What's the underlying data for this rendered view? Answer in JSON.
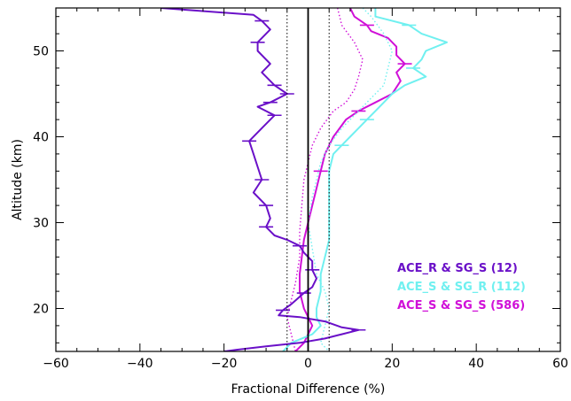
{
  "chart_data": {
    "type": "line",
    "xlabel": "Fractional Difference (%)",
    "ylabel": "Altitude (km)",
    "xlim": [
      -60,
      60
    ],
    "ylim": [
      15,
      55
    ],
    "xticks": [
      -60,
      -40,
      -20,
      0,
      20,
      40,
      60
    ],
    "yticks": [
      20,
      30,
      40,
      50
    ],
    "xtick_labels": [
      "−60",
      "−40",
      "−20",
      "0",
      "20",
      "40",
      "60"
    ],
    "ytick_labels": [
      "20",
      "30",
      "40",
      "50"
    ],
    "reference_lines": {
      "solid_x": 0,
      "dotted_x": [
        -5,
        5
      ]
    },
    "legend_position": "lower-right",
    "series": [
      {
        "label": "ACE_R & SG_S (12)",
        "color": "#6a10c8",
        "mean": [
          [
            -35,
            55
          ],
          [
            -13,
            54.2
          ],
          [
            -11,
            53.5
          ],
          [
            -9,
            52.5
          ],
          [
            -12,
            51
          ],
          [
            -12,
            50
          ],
          [
            -9,
            48.5
          ],
          [
            -11,
            47.5
          ],
          [
            -8,
            46
          ],
          [
            -5,
            45
          ],
          [
            -9,
            44
          ],
          [
            -12,
            43.5
          ],
          [
            -8,
            42.5
          ],
          [
            -11,
            41
          ],
          [
            -14,
            39.5
          ],
          [
            -13,
            38
          ],
          [
            -12,
            36.5
          ],
          [
            -11,
            35
          ],
          [
            -13,
            33.5
          ],
          [
            -10,
            32
          ],
          [
            -9,
            30.5
          ],
          [
            -10,
            29.5
          ],
          [
            -8,
            28.5
          ],
          [
            -5,
            28
          ],
          [
            -2,
            27.3
          ],
          [
            -1,
            26.5
          ],
          [
            1,
            25.5
          ],
          [
            1,
            24.5
          ],
          [
            2,
            23.5
          ],
          [
            1,
            22.5
          ],
          [
            -1,
            21.8
          ],
          [
            -4,
            20.5
          ],
          [
            -6,
            19.8
          ],
          [
            -7,
            19.2
          ],
          [
            -2,
            19.0
          ],
          [
            4,
            18.5
          ],
          [
            8,
            17.8
          ],
          [
            12,
            17.5
          ],
          [
            8,
            17.0
          ],
          [
            4,
            16.5
          ],
          [
            -2,
            16.0
          ],
          [
            -10,
            15.6
          ],
          [
            -17,
            15.2
          ],
          [
            -20,
            15
          ]
        ],
        "error_bars": [
          [
            -11,
            53.5
          ],
          [
            -12,
            51
          ],
          [
            -8,
            46
          ],
          [
            -5,
            45
          ],
          [
            -9,
            44
          ],
          [
            -8,
            42.5
          ],
          [
            -14,
            39.5
          ],
          [
            -11,
            35
          ],
          [
            -10,
            32
          ],
          [
            -10,
            29.5
          ],
          [
            -2,
            27.3
          ],
          [
            1,
            24.5
          ],
          [
            -1,
            21.8
          ],
          [
            -6,
            19.8
          ],
          [
            12,
            17.5
          ]
        ],
        "dotted": []
      },
      {
        "label": "ACE_S & SG_R (112)",
        "color": "#70f0f0",
        "mean": [
          [
            16,
            55
          ],
          [
            16,
            54
          ],
          [
            24,
            53
          ],
          [
            27,
            52
          ],
          [
            33,
            51
          ],
          [
            28,
            50
          ],
          [
            27,
            49
          ],
          [
            25,
            48
          ],
          [
            28,
            47
          ],
          [
            23,
            46
          ],
          [
            20,
            45
          ],
          [
            18,
            44
          ],
          [
            16,
            43
          ],
          [
            14,
            42
          ],
          [
            12,
            41
          ],
          [
            10,
            40
          ],
          [
            8,
            39
          ],
          [
            6,
            38
          ],
          [
            5,
            36
          ],
          [
            5,
            34
          ],
          [
            5,
            32
          ],
          [
            5,
            30
          ],
          [
            5,
            28
          ],
          [
            4,
            26
          ],
          [
            3,
            24
          ],
          [
            3,
            22
          ],
          [
            2,
            20
          ],
          [
            2,
            19
          ],
          [
            3,
            18
          ],
          [
            1,
            17
          ],
          [
            -4,
            16
          ],
          [
            -6,
            15
          ]
        ],
        "error_bars": [
          [
            24,
            53
          ],
          [
            25,
            48
          ],
          [
            14,
            42
          ],
          [
            8,
            39
          ]
        ],
        "dotted": [
          [
            13,
            55
          ],
          [
            15,
            54
          ],
          [
            18,
            52
          ],
          [
            20,
            50
          ],
          [
            19,
            48
          ],
          [
            18,
            46
          ],
          [
            15,
            44.5
          ],
          [
            12,
            43
          ],
          [
            8,
            41
          ],
          [
            5,
            39
          ],
          [
            3,
            37
          ],
          [
            2,
            35
          ],
          [
            1,
            33
          ],
          [
            0,
            30
          ],
          [
            1,
            27
          ],
          [
            2,
            24
          ],
          [
            4,
            22
          ],
          [
            5,
            20
          ],
          [
            4,
            18
          ],
          [
            3,
            16
          ],
          [
            5,
            15
          ]
        ]
      },
      {
        "label": "ACE_S & SG_S (586)",
        "color": "#d010d8",
        "mean": [
          [
            10,
            55
          ],
          [
            11,
            54
          ],
          [
            14,
            53
          ],
          [
            15,
            52.3
          ],
          [
            19,
            51.5
          ],
          [
            21,
            50.5
          ],
          [
            21,
            49.5
          ],
          [
            23,
            48.5
          ],
          [
            21,
            47.5
          ],
          [
            22,
            46.5
          ],
          [
            20,
            45
          ],
          [
            16,
            44
          ],
          [
            12,
            43
          ],
          [
            9,
            42
          ],
          [
            6,
            40
          ],
          [
            4,
            38
          ],
          [
            3,
            36
          ],
          [
            2,
            34
          ],
          [
            1,
            32
          ],
          [
            0,
            30
          ],
          [
            -1,
            28
          ],
          [
            -1.5,
            26
          ],
          [
            -2,
            24
          ],
          [
            -2,
            22
          ],
          [
            -1,
            20
          ],
          [
            0,
            19
          ],
          [
            1,
            18
          ],
          [
            0,
            17
          ],
          [
            -1,
            16
          ],
          [
            -3,
            15
          ]
        ],
        "error_bars": [
          [
            14,
            53
          ],
          [
            23,
            48.5
          ],
          [
            12,
            43
          ],
          [
            3,
            36
          ]
        ],
        "dotted": [
          [
            7,
            55
          ],
          [
            8,
            53
          ],
          [
            11,
            51
          ],
          [
            13,
            49
          ],
          [
            12,
            47
          ],
          [
            11,
            45.5
          ],
          [
            9,
            44
          ],
          [
            6,
            43
          ],
          [
            3,
            41
          ],
          [
            1,
            39
          ],
          [
            0,
            37
          ],
          [
            -1,
            35
          ],
          [
            -1.5,
            32
          ],
          [
            -2,
            29
          ],
          [
            -2,
            26
          ],
          [
            -3,
            23
          ],
          [
            -4,
            21
          ],
          [
            -5,
            19
          ],
          [
            -4,
            17
          ],
          [
            -3,
            15
          ]
        ]
      }
    ]
  }
}
